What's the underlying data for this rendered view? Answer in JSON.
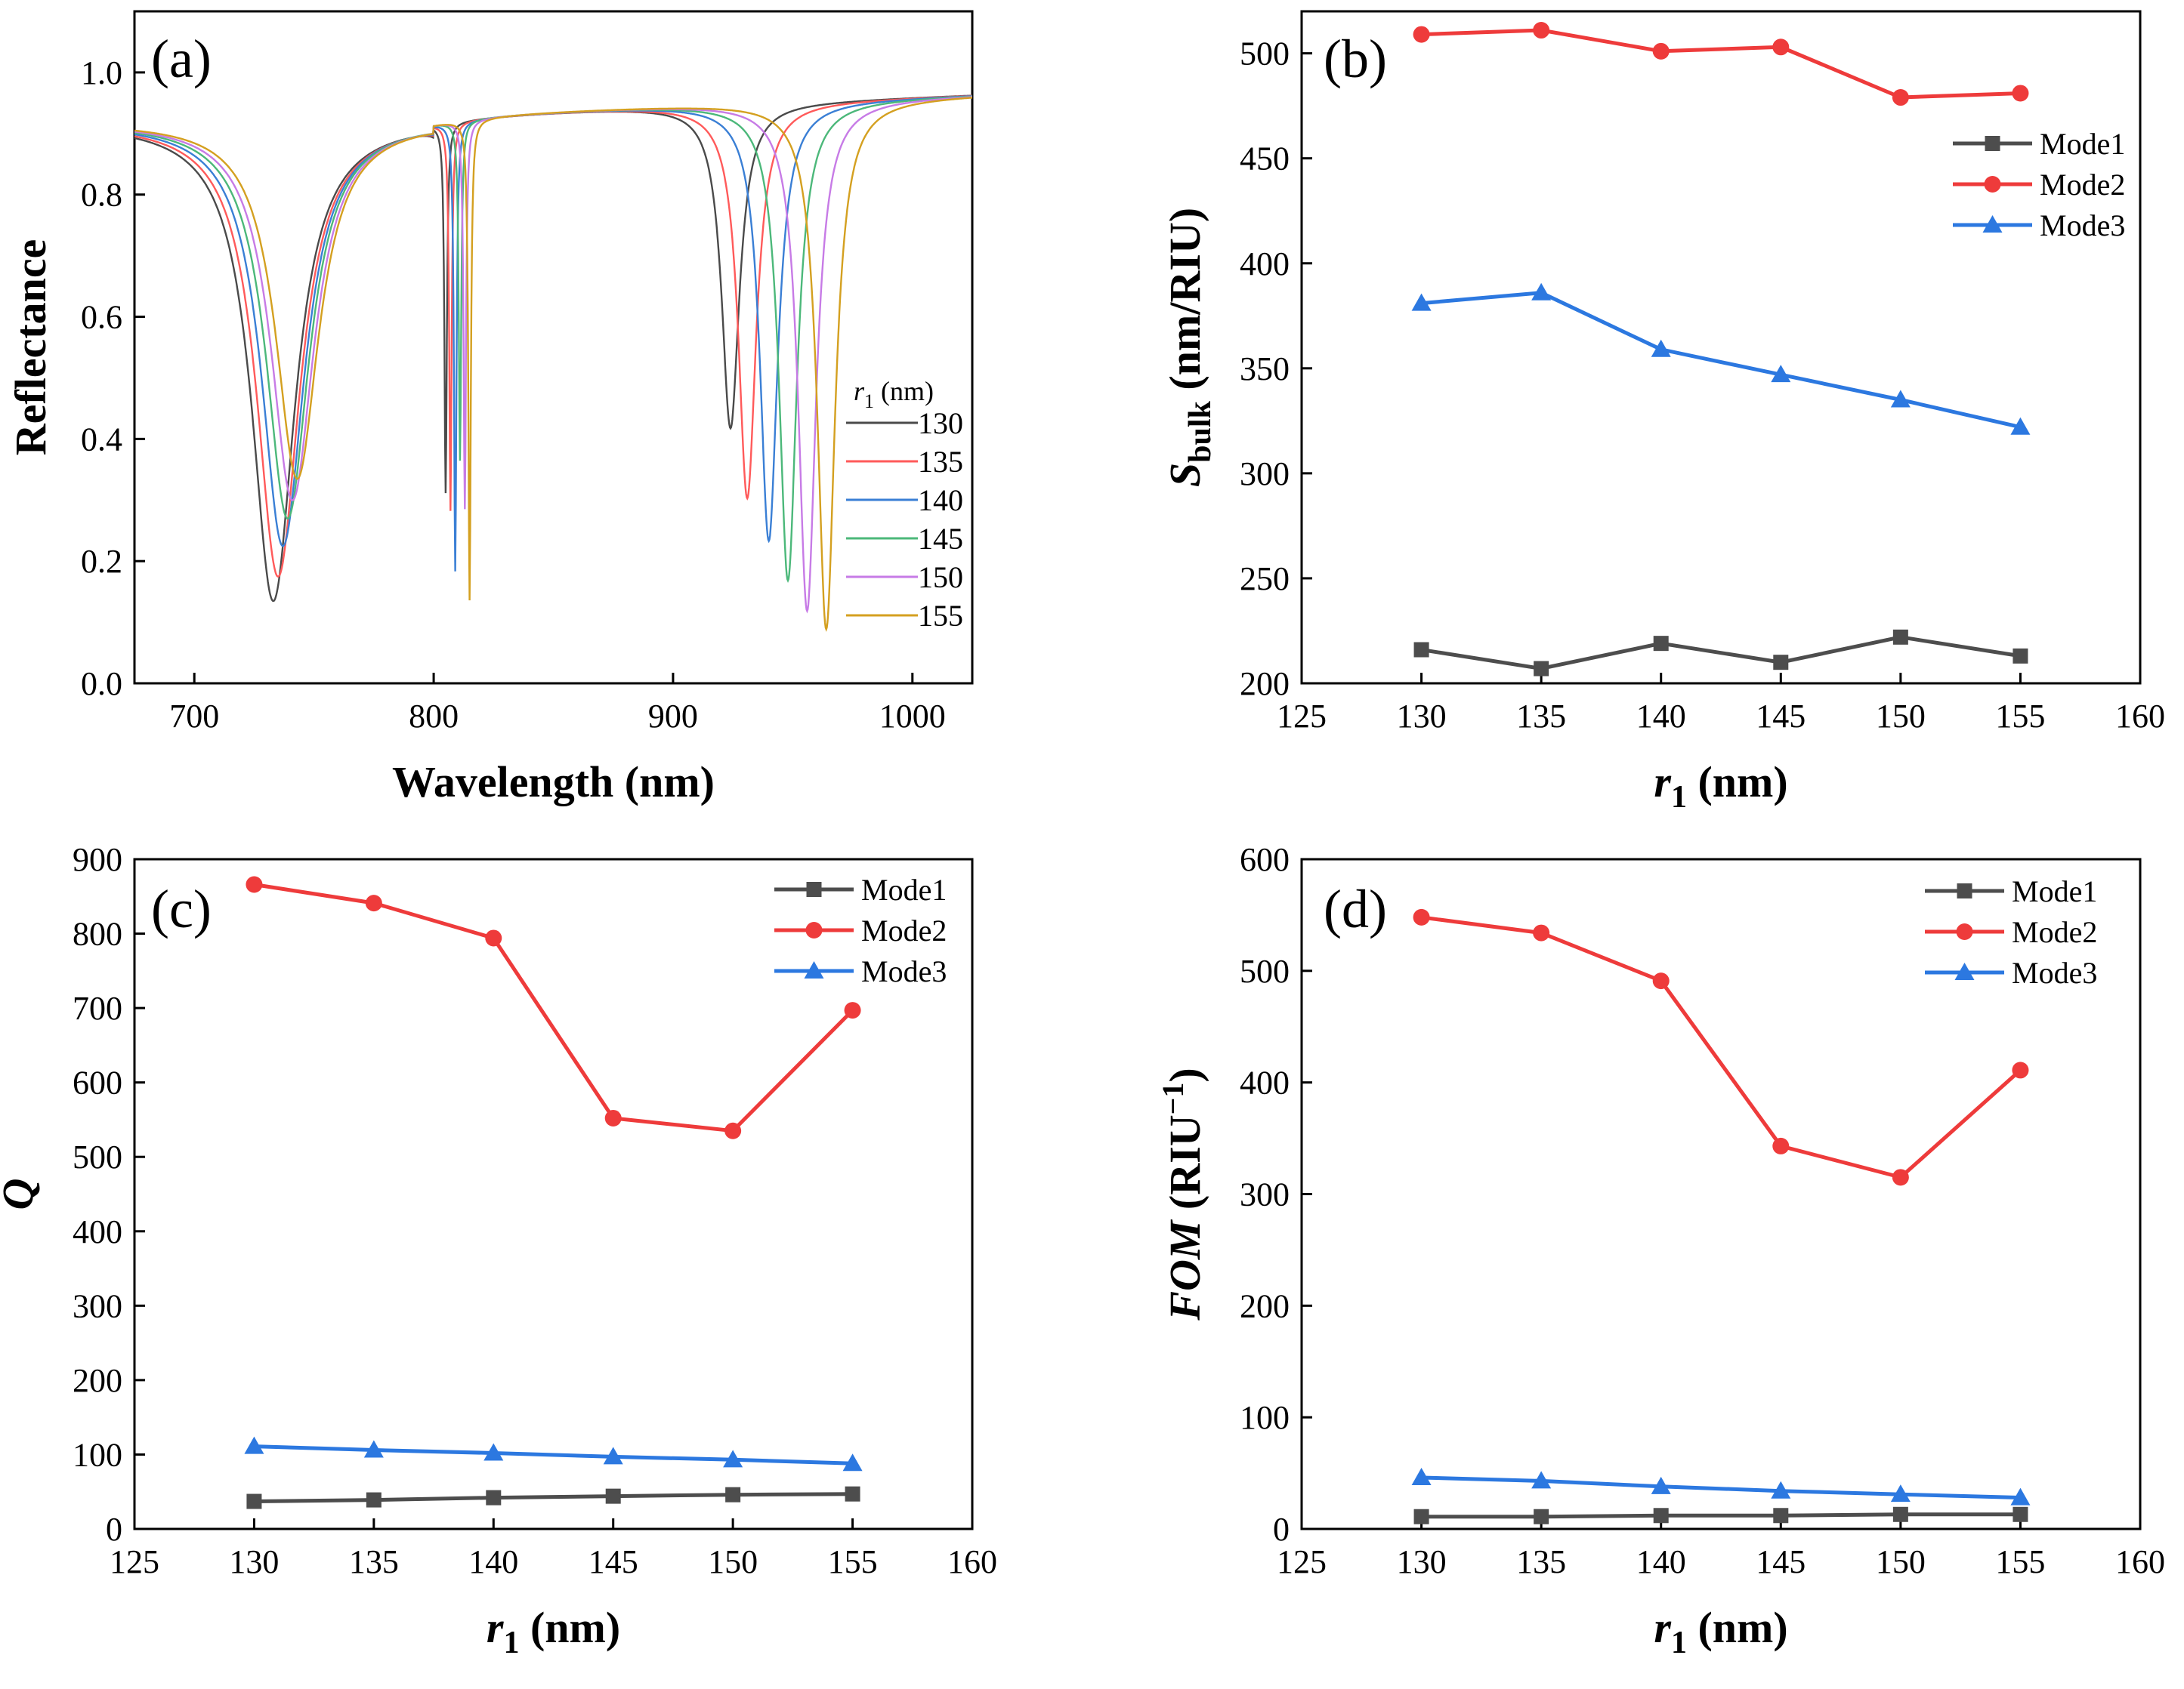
{
  "chart_data": [
    {
      "panel": "(a)",
      "type": "line",
      "xlabel": "Wavelength (nm)",
      "ylabel": "Reflectance",
      "xlim": [
        675,
        1025
      ],
      "ylim": [
        0,
        1.1
      ],
      "xticks": [
        700,
        800,
        900,
        1000
      ],
      "yticks": [
        0.0,
        0.2,
        0.4,
        0.6,
        0.8,
        1.0
      ],
      "legend_title_var": "r",
      "legend_title_sub": "1",
      "legend_title_unit": " (nm)",
      "legend_position": "right",
      "series": [
        {
          "name": "130",
          "color": "#4a4a4a",
          "dips": [
            [
              733,
              0.135
            ],
            [
              805,
              0.33
            ],
            [
              924,
              0.42
            ]
          ]
        },
        {
          "name": "135",
          "color": "#ff5a5a",
          "dips": [
            [
              735,
              0.175
            ],
            [
              807,
              0.3
            ],
            [
              931,
              0.305
            ]
          ]
        },
        {
          "name": "140",
          "color": "#3a7fd5",
          "dips": [
            [
              737,
              0.225
            ],
            [
              809,
              0.2
            ],
            [
              940,
              0.235
            ]
          ]
        },
        {
          "name": "145",
          "color": "#4cb87a",
          "dips": [
            [
              739,
              0.27
            ],
            [
              811,
              0.38
            ],
            [
              948,
              0.17
            ]
          ]
        },
        {
          "name": "150",
          "color": "#c77be6",
          "dips": [
            [
              741,
              0.3
            ],
            [
              813,
              0.3
            ],
            [
              956,
              0.12
            ]
          ]
        },
        {
          "name": "155",
          "color": "#d4a020",
          "dips": [
            [
              743,
              0.335
            ],
            [
              815,
              0.15
            ],
            [
              964,
              0.09
            ]
          ]
        }
      ]
    },
    {
      "panel": "(b)",
      "type": "line",
      "xlabel_var": "r",
      "xlabel_sub": "1",
      "xlabel_unit": " (nm)",
      "ylabel_var": "S",
      "ylabel_sub": "bulk",
      "ylabel_unit": " (nm/RIU)",
      "xlim": [
        125,
        160
      ],
      "ylim": [
        200,
        520
      ],
      "xticks": [
        125,
        130,
        135,
        140,
        145,
        150,
        155,
        160
      ],
      "yticks": [
        200,
        250,
        300,
        350,
        400,
        450,
        500
      ],
      "x": [
        130,
        135,
        140,
        145,
        150,
        155
      ],
      "legend_position": "top-right",
      "series": [
        {
          "name": "Mode1",
          "color": "#4d4d4d",
          "marker": "square",
          "values": [
            216,
            207,
            219,
            210,
            222,
            213
          ]
        },
        {
          "name": "Mode2",
          "color": "#ee3b3b",
          "marker": "circle",
          "values": [
            509,
            511,
            501,
            503,
            479,
            481
          ]
        },
        {
          "name": "Mode3",
          "color": "#2c78e0",
          "marker": "triangle",
          "values": [
            381,
            386,
            359,
            347,
            335,
            322
          ]
        }
      ]
    },
    {
      "panel": "(c)",
      "type": "line",
      "xlabel_var": "r",
      "xlabel_sub": "1",
      "xlabel_unit": " (nm)",
      "ylabel": "Q",
      "xlim": [
        125,
        160
      ],
      "ylim": [
        0,
        900
      ],
      "xticks": [
        125,
        130,
        135,
        140,
        145,
        150,
        155,
        160
      ],
      "yticks": [
        0,
        100,
        200,
        300,
        400,
        500,
        600,
        700,
        800,
        900
      ],
      "x": [
        130,
        135,
        140,
        145,
        150,
        155
      ],
      "legend_position": "top-right",
      "series": [
        {
          "name": "Mode1",
          "color": "#4d4d4d",
          "marker": "square",
          "values": [
            37,
            39,
            42,
            44,
            46,
            47
          ]
        },
        {
          "name": "Mode2",
          "color": "#ee3b3b",
          "marker": "circle",
          "values": [
            866,
            841,
            794,
            552,
            535,
            697
          ]
        },
        {
          "name": "Mode3",
          "color": "#2c78e0",
          "marker": "triangle",
          "values": [
            111,
            106,
            102,
            97,
            93,
            88
          ]
        }
      ]
    },
    {
      "panel": "(d)",
      "type": "line",
      "xlabel_var": "r",
      "xlabel_sub": "1",
      "xlabel_unit": " (nm)",
      "ylabel_var": "FOM",
      "ylabel_unit": " (RIU",
      "ylabel_sup": "−1",
      "ylabel_close": ")",
      "xlim": [
        125,
        160
      ],
      "ylim": [
        0,
        600
      ],
      "xticks": [
        125,
        130,
        135,
        140,
        145,
        150,
        155,
        160
      ],
      "yticks": [
        0,
        100,
        200,
        300,
        400,
        500,
        600
      ],
      "x": [
        130,
        135,
        140,
        145,
        150,
        155
      ],
      "legend_position": "top-right",
      "series": [
        {
          "name": "Mode1",
          "color": "#4d4d4d",
          "marker": "square",
          "values": [
            11,
            11,
            12,
            12,
            13,
            13
          ]
        },
        {
          "name": "Mode2",
          "color": "#ee3b3b",
          "marker": "circle",
          "values": [
            548,
            534,
            491,
            343,
            315,
            411
          ]
        },
        {
          "name": "Mode3",
          "color": "#2c78e0",
          "marker": "triangle",
          "values": [
            46,
            43,
            38,
            34,
            31,
            28
          ]
        }
      ]
    }
  ]
}
